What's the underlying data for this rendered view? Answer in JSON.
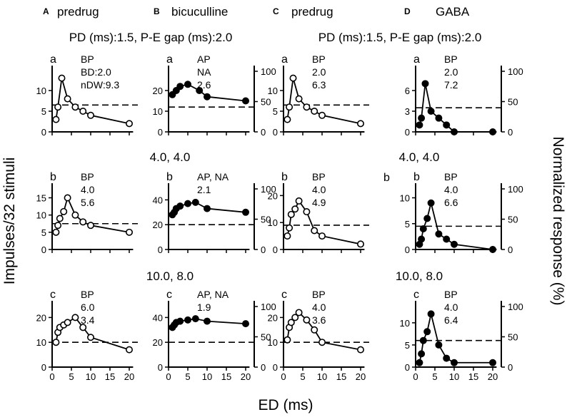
{
  "figure": {
    "y_label_left": "Impulses/32 stimuli",
    "y_label_right": "Normalized response (%)",
    "x_label": "ED (ms)",
    "column_letters": [
      "A",
      "B",
      "C",
      "D"
    ],
    "column_titles": [
      "predrug",
      "bicuculline",
      "predrug",
      "GABA"
    ],
    "condition_labels": {
      "row_a_left": "PD (ms):1.5, P-E gap (ms):2.0",
      "row_a_right": "PD (ms):1.5, P-E gap (ms):2.0",
      "row_b_left": "4.0, 4.0",
      "row_b_right": "4.0, 4.0",
      "row_c_left": "10.0, 8.0",
      "row_c_right": "10.0, 8.0"
    },
    "extra_labels": {
      "stray_b": "b"
    },
    "colors": {
      "ink": "#000000",
      "open_fill": "#ffffff",
      "filled": "#000000"
    }
  },
  "chart_data": [
    {
      "type": "line",
      "column": "A",
      "row": 0,
      "letter": "a",
      "marker": "open",
      "x": [
        1,
        1.5,
        2.5,
        4,
        6,
        8,
        10,
        20
      ],
      "y": [
        3,
        6,
        13,
        8,
        6,
        5,
        4,
        2
      ],
      "left_ticks": [
        0,
        5,
        10
      ],
      "left_max": 15,
      "half_max_line": 6.5,
      "right_axis": false,
      "annotations": [
        "BP",
        "BD:2.0",
        "nDW:9.3"
      ]
    },
    {
      "type": "line",
      "column": "B",
      "row": 0,
      "letter": "a",
      "marker": "filled",
      "x": [
        1,
        2,
        3,
        5,
        8,
        10,
        20
      ],
      "y": [
        18,
        20,
        22,
        23,
        20,
        17,
        15
      ],
      "left_ticks": [
        0,
        10,
        20
      ],
      "left_max": 30,
      "half_max_line": 12,
      "right_axis": true,
      "right_ticks": [
        0,
        50,
        100
      ],
      "annotations": [
        "AP",
        "NA",
        "2.6"
      ]
    },
    {
      "type": "line",
      "column": "C",
      "row": 0,
      "letter": "a",
      "marker": "open",
      "x": [
        1,
        1.5,
        2.5,
        4,
        6,
        8,
        10,
        20
      ],
      "y": [
        3,
        6,
        13,
        8,
        6,
        5,
        4,
        2
      ],
      "left_ticks": [
        0,
        5,
        10
      ],
      "left_max": 15,
      "half_max_line": 6.5,
      "right_axis": false,
      "annotations": [
        "BP",
        "2.0",
        "6.3"
      ]
    },
    {
      "type": "line",
      "column": "D",
      "row": 0,
      "letter": "a",
      "marker": "filled",
      "x": [
        1,
        1.5,
        2.5,
        4,
        6,
        8,
        10,
        20
      ],
      "y": [
        1,
        2,
        7,
        3,
        2,
        1,
        0,
        0
      ],
      "left_ticks": [
        0,
        3,
        6
      ],
      "left_max": 9,
      "half_max_line": 3.5,
      "right_axis": true,
      "right_ticks": [
        0,
        50,
        100
      ],
      "annotations": [
        "BP",
        "2.0",
        "7.2"
      ]
    },
    {
      "type": "line",
      "column": "A",
      "row": 1,
      "letter": "b",
      "marker": "open",
      "x": [
        1,
        1.5,
        2,
        3,
        4,
        6,
        8,
        10,
        20
      ],
      "y": [
        5,
        7,
        9,
        11,
        15,
        10,
        8,
        7,
        5
      ],
      "left_ticks": [
        0,
        5,
        10,
        15
      ],
      "left_max": 18,
      "half_max_line": 7.5,
      "right_axis": false,
      "annotations": [
        "BP",
        "4.0",
        "5.6"
      ]
    },
    {
      "type": "line",
      "column": "B",
      "row": 1,
      "letter": "b",
      "marker": "filled",
      "x": [
        1,
        1.5,
        2,
        3,
        5,
        7,
        10,
        20
      ],
      "y": [
        28,
        30,
        33,
        35,
        37,
        38,
        33,
        30
      ],
      "left_ticks": [
        0,
        20,
        40
      ],
      "left_max": 50,
      "half_max_line": 20,
      "right_axis": true,
      "right_ticks": [
        0,
        50,
        100
      ],
      "annotations": [
        "AP, NA",
        "2.1"
      ]
    },
    {
      "type": "line",
      "column": "C",
      "row": 1,
      "letter": "b",
      "marker": "open",
      "x": [
        1,
        1.5,
        2,
        3,
        4,
        6,
        8,
        10,
        20
      ],
      "y": [
        5,
        8,
        13,
        15,
        18,
        14,
        7,
        5,
        2
      ],
      "left_ticks": [
        0,
        10,
        20
      ],
      "left_max": 23,
      "half_max_line": 9,
      "right_axis": false,
      "annotations": [
        "BP",
        "4.0",
        "4.9"
      ]
    },
    {
      "type": "line",
      "column": "D",
      "row": 1,
      "letter": "b",
      "marker": "filled",
      "x": [
        1,
        1.5,
        2,
        3,
        4,
        6,
        8,
        10,
        20
      ],
      "y": [
        1,
        2,
        4,
        6,
        9,
        3,
        2,
        1,
        0
      ],
      "left_ticks": [
        0,
        5,
        10
      ],
      "left_max": 12,
      "half_max_line": 4.5,
      "right_axis": true,
      "right_ticks": [
        0,
        50,
        100
      ],
      "annotations": [
        "BP",
        "4.0",
        "6.6"
      ]
    },
    {
      "type": "line",
      "column": "A",
      "row": 2,
      "letter": "c",
      "marker": "open",
      "x": [
        1,
        1.5,
        2,
        3,
        4,
        6,
        8,
        10,
        20
      ],
      "y": [
        10,
        14,
        16,
        17,
        18,
        20,
        16,
        12,
        7
      ],
      "left_ticks": [
        0,
        10,
        20
      ],
      "left_max": 25,
      "half_max_line": 10,
      "right_axis": false,
      "annotations": [
        "BP",
        "6.0",
        "3.4"
      ]
    },
    {
      "type": "line",
      "column": "B",
      "row": 2,
      "letter": "c",
      "marker": "filled",
      "x": [
        1,
        1.5,
        2,
        3,
        5,
        7,
        10,
        20
      ],
      "y": [
        32,
        34,
        36,
        37,
        38,
        39,
        37,
        35
      ],
      "left_ticks": [
        0,
        20,
        40
      ],
      "left_max": 50,
      "half_max_line": 20,
      "right_axis": true,
      "right_ticks": [
        0,
        50,
        100
      ],
      "annotations": [
        "AP, NA",
        "1.9"
      ]
    },
    {
      "type": "line",
      "column": "C",
      "row": 2,
      "letter": "c",
      "marker": "open",
      "x": [
        1,
        1.5,
        2,
        3,
        4,
        6,
        8,
        10,
        20
      ],
      "y": [
        11,
        16,
        18,
        20,
        22,
        19,
        15,
        10,
        7
      ],
      "left_ticks": [
        0,
        10,
        20
      ],
      "left_max": 25,
      "half_max_line": 10,
      "right_axis": false,
      "annotations": [
        "BP",
        "4.0",
        "3.6"
      ]
    },
    {
      "type": "line",
      "column": "D",
      "row": 2,
      "letter": "c",
      "marker": "filled",
      "x": [
        1,
        1.5,
        2,
        3,
        4,
        6,
        8,
        10,
        20
      ],
      "y": [
        1,
        3,
        6,
        8,
        12,
        5,
        2,
        1,
        1
      ],
      "left_ticks": [
        0,
        5,
        10
      ],
      "left_max": 14,
      "half_max_line": 6,
      "right_axis": true,
      "right_ticks": [
        0,
        50,
        100
      ],
      "annotations": [
        "BP",
        "4.0",
        "6.4"
      ]
    }
  ],
  "x_axis": {
    "ticks": [
      0,
      5,
      10,
      15,
      20
    ],
    "range": [
      0,
      21
    ]
  }
}
